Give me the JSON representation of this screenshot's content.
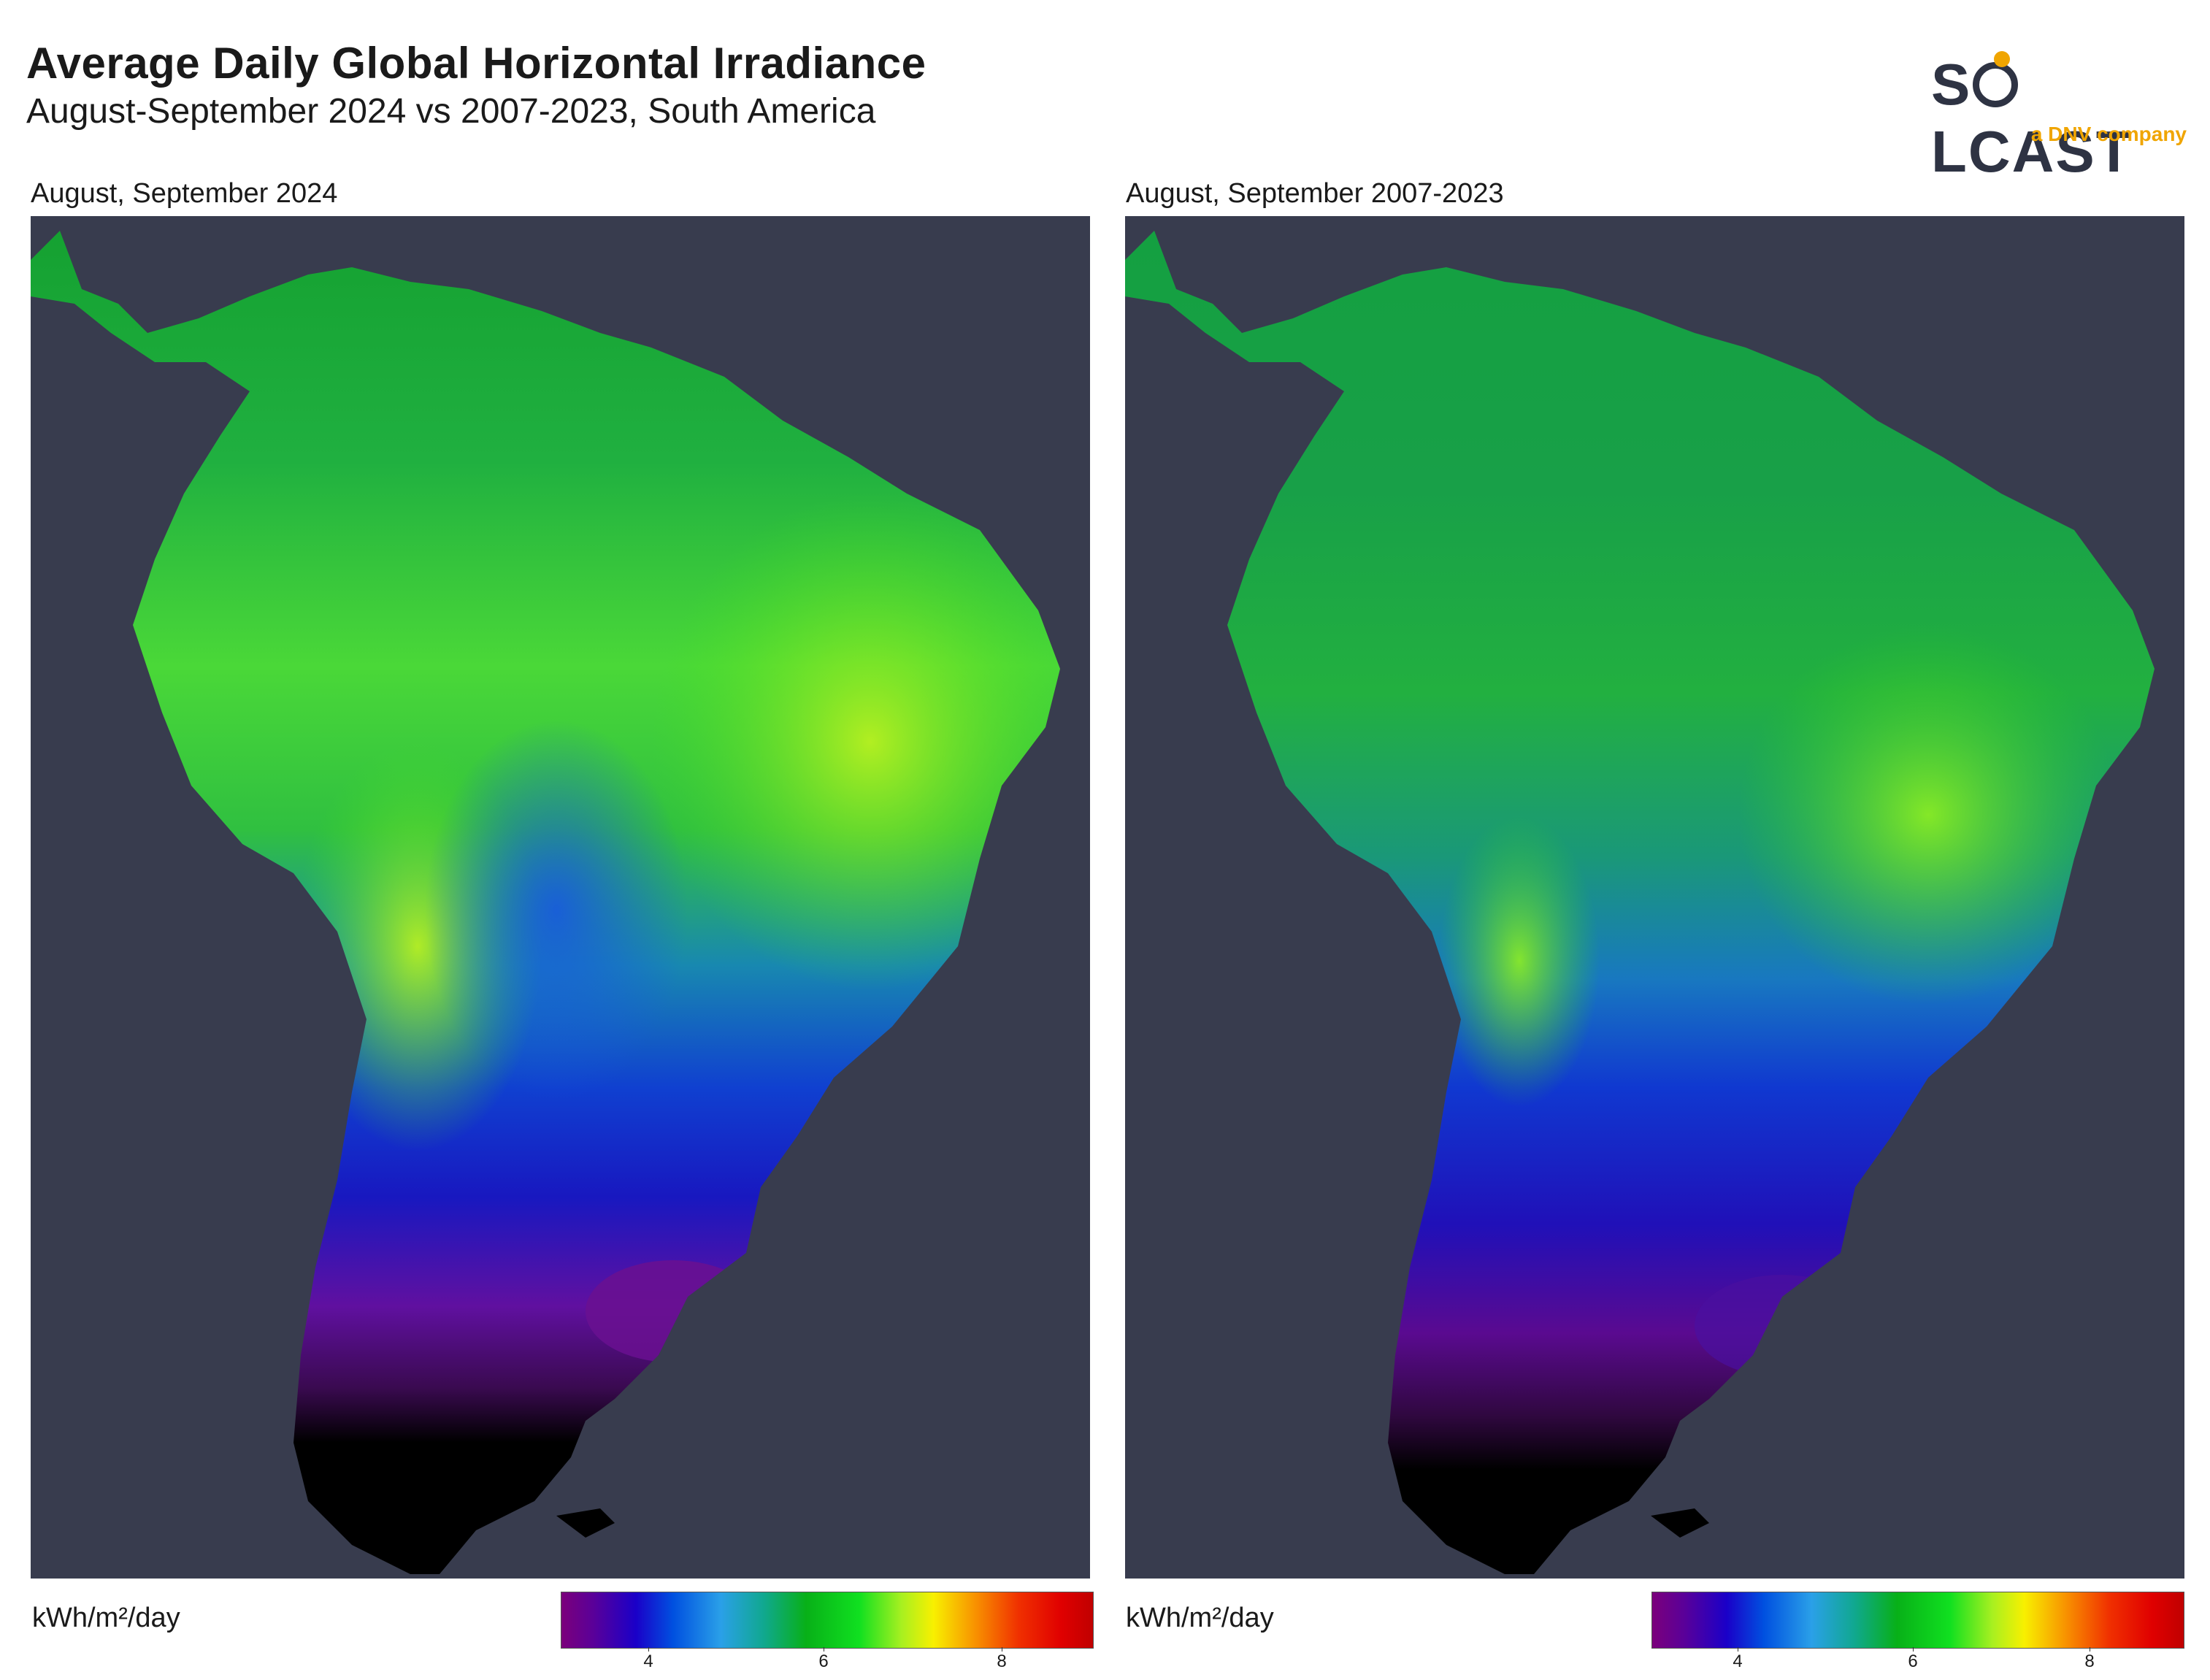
{
  "header": {
    "title": "Average Daily Global Horizontal Irradiance",
    "subtitle": "August-September 2024 vs 2007-2023, South America"
  },
  "logo": {
    "name_left": "S",
    "name_right": "LCAST",
    "tagline": "a DNV company",
    "brand_color": "#2e3343",
    "accent_color": "#f0a500"
  },
  "panels": [
    {
      "label": "August, September 2024"
    },
    {
      "label": "August, September 2007-2023"
    }
  ],
  "legend": {
    "unit": "kWh/m²/day",
    "ticks": [
      "4",
      "6",
      "8"
    ],
    "colors": [
      "#7b007b",
      "#1a00c8",
      "#2aa0e8",
      "#10a890",
      "#08b018",
      "#10e020",
      "#f8f000",
      "#f89000",
      "#e00000"
    ]
  },
  "colors": {
    "ocean": "#383c4e",
    "land_shadow": "#000000"
  }
}
